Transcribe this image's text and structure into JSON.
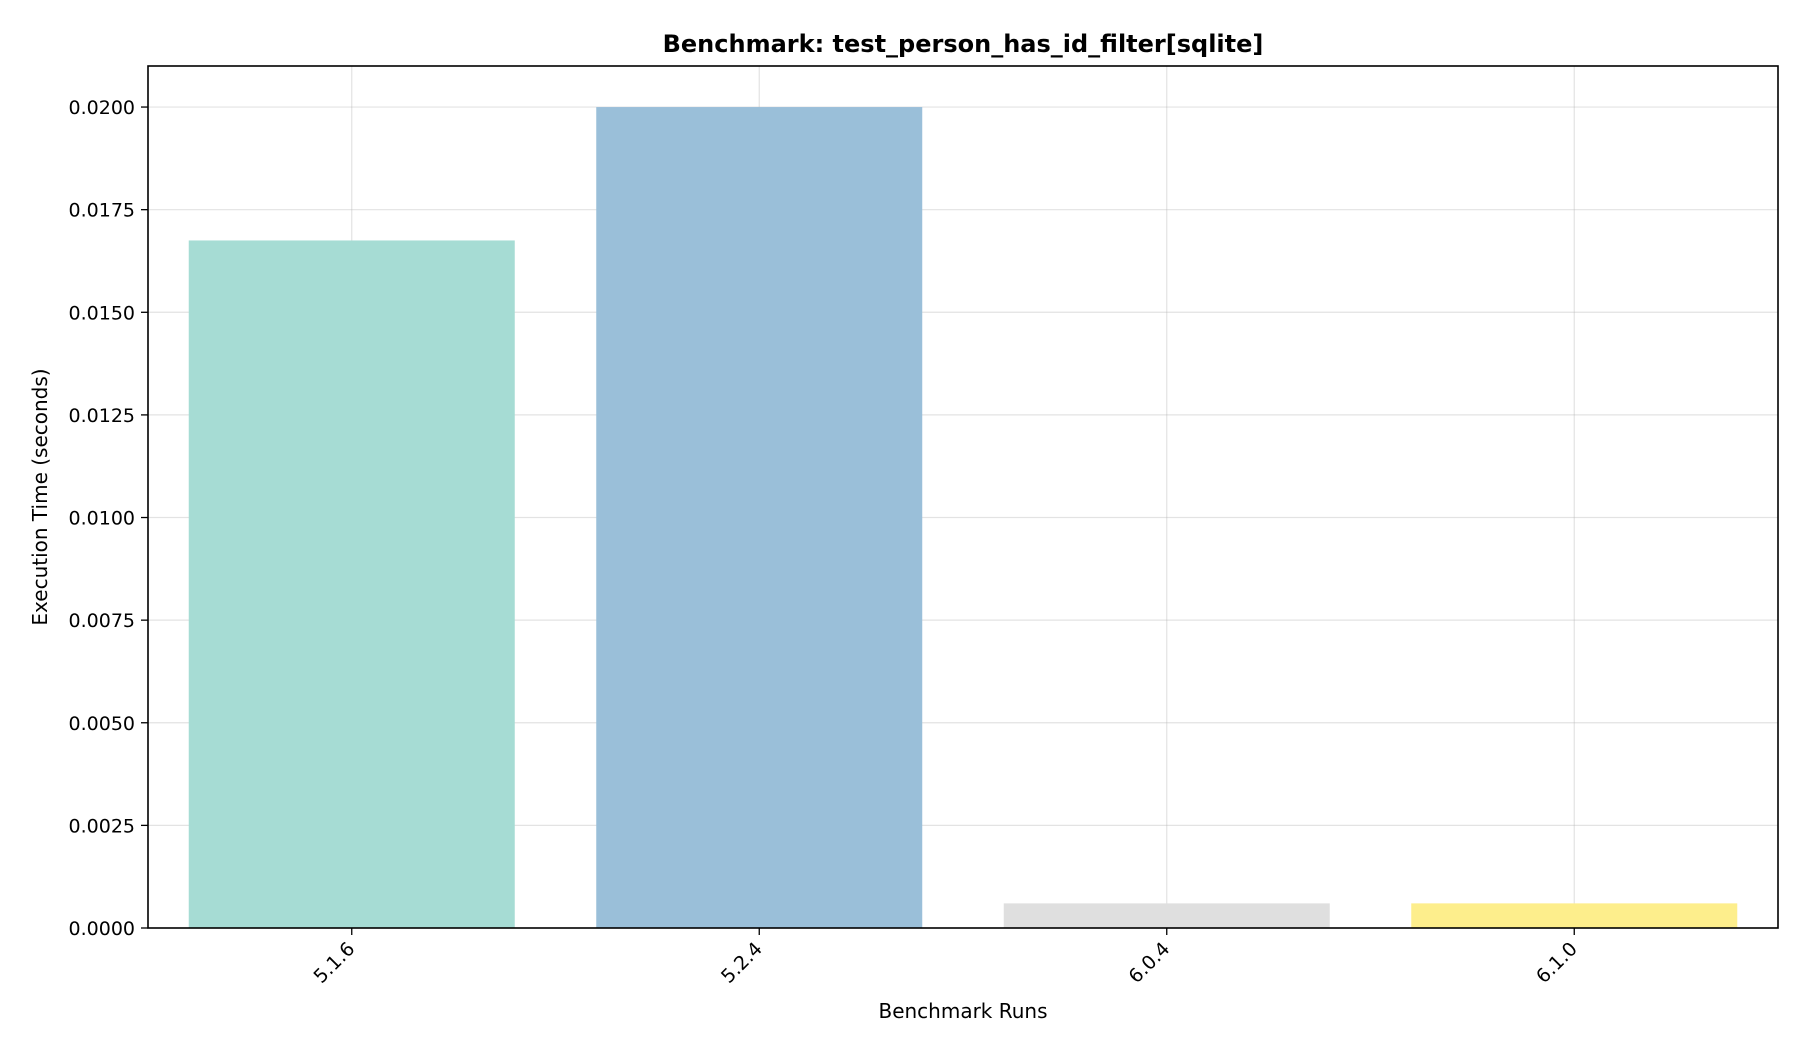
{
  "chart_data": {
    "type": "bar",
    "title": "Benchmark: test_person_has_id_filter[sqlite]",
    "xlabel": "Benchmark Runs",
    "ylabel": "Execution Time (seconds)",
    "categories": [
      "5.1.6",
      "5.2.4",
      "6.0.4",
      "6.1.0"
    ],
    "values": [
      0.01675,
      0.02,
      0.0006,
      0.0006
    ],
    "colors": [
      "#a6dcd4",
      "#9abfd9",
      "#dfdfdf",
      "#fdee8c"
    ],
    "ylim": [
      0,
      0.021
    ],
    "yticks": [
      "0.0000",
      "0.0025",
      "0.0050",
      "0.0075",
      "0.0100",
      "0.0125",
      "0.0150",
      "0.0175",
      "0.0200"
    ],
    "grid": true,
    "legend": "none"
  }
}
